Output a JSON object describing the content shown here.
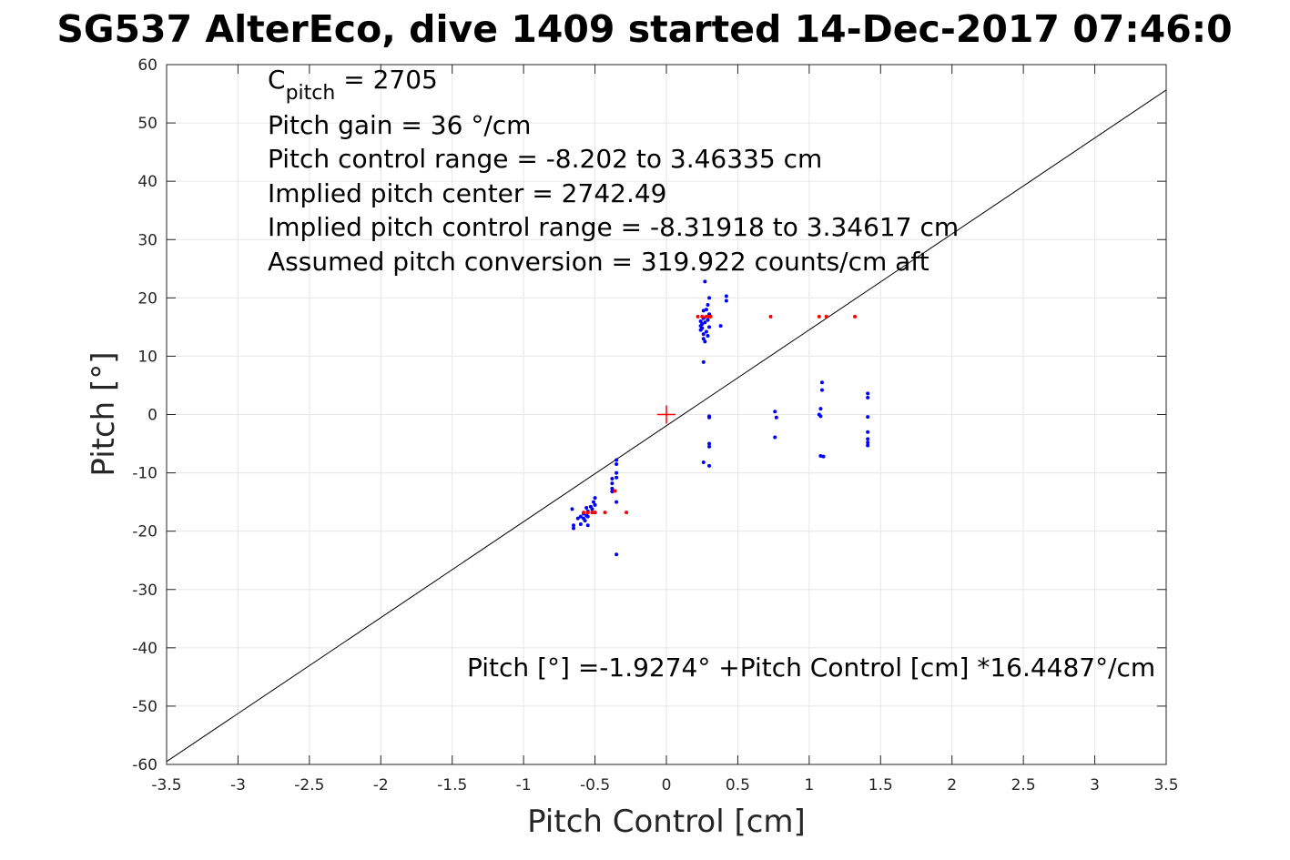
{
  "chart_data": {
    "type": "scatter",
    "title": "SG537 AlterEco, dive 1409 started 14-Dec-2017 07:46:0",
    "xlabel": "Pitch Control [cm]",
    "ylabel": "Pitch [°]",
    "xlim": [
      -3.5,
      3.5
    ],
    "ylim": [
      -60,
      60
    ],
    "xticks": [
      "-3.5",
      "-3",
      "-2.5",
      "-2",
      "-1.5",
      "-1",
      "-0.5",
      "0",
      "0.5",
      "1",
      "1.5",
      "2",
      "2.5",
      "3",
      "3.5"
    ],
    "yticks": [
      "60",
      "50",
      "40",
      "30",
      "20",
      "10",
      "0",
      "-10",
      "-20",
      "-30",
      "-40",
      "-50",
      "-60"
    ],
    "grid": true,
    "annotations": {
      "c_pitch_symbol": "C",
      "c_pitch_sub": "pitch",
      "c_pitch_value": " = 2705",
      "lines": [
        "Pitch gain = 36 °/cm",
        "Pitch control range = -8.202 to 3.46335 cm",
        "Implied pitch center = 2742.49",
        "Implied pitch control range = -8.31918 to 3.34617 cm",
        "Assumed pitch conversion = 319.922 counts/cm aft"
      ],
      "fit_equation": "Pitch [°] =-1.9274° +Pitch Control [cm] *16.4487°/cm"
    },
    "fit_line": {
      "intercept": -1.9274,
      "slope": 16.4487,
      "color": "#000000"
    },
    "center_marker": {
      "x": 0,
      "y": 0,
      "color": "#ff0000"
    },
    "series": [
      {
        "color": "#0000ff",
        "points": [
          [
            -0.65,
            -19.5
          ],
          [
            -0.65,
            -19
          ],
          [
            -0.66,
            -16.2
          ],
          [
            -0.62,
            -17.8
          ],
          [
            -0.6,
            -17.5
          ],
          [
            -0.6,
            -18.8
          ],
          [
            -0.58,
            -17
          ],
          [
            -0.58,
            -17.8
          ],
          [
            -0.57,
            -18.2
          ],
          [
            -0.56,
            -16
          ],
          [
            -0.56,
            -17.3
          ],
          [
            -0.55,
            -16.6
          ],
          [
            -0.55,
            -17.5
          ],
          [
            -0.55,
            -19
          ],
          [
            -0.53,
            -15.8
          ],
          [
            -0.52,
            -16.2
          ],
          [
            -0.51,
            -15
          ],
          [
            -0.5,
            -14.3
          ],
          [
            -0.5,
            -15.5
          ],
          [
            -0.5,
            -16.8
          ],
          [
            -0.38,
            -11
          ],
          [
            -0.38,
            -11.8
          ],
          [
            -0.38,
            -12.7
          ],
          [
            -0.38,
            -13.2
          ],
          [
            -0.35,
            -7.8
          ],
          [
            -0.35,
            -8.5
          ],
          [
            -0.35,
            -10
          ],
          [
            -0.35,
            -10.8
          ],
          [
            -0.35,
            -15
          ],
          [
            -0.35,
            -24
          ],
          [
            0.24,
            14.5
          ],
          [
            0.24,
            15.2
          ],
          [
            0.24,
            16
          ],
          [
            0.25,
            14.8
          ],
          [
            0.25,
            15.5
          ],
          [
            0.26,
            13
          ],
          [
            0.26,
            13.8
          ],
          [
            0.26,
            16.5
          ],
          [
            0.26,
            17.8
          ],
          [
            0.26,
            9
          ],
          [
            0.26,
            -8.2
          ],
          [
            0.27,
            22.8
          ],
          [
            0.27,
            15.8
          ],
          [
            0.27,
            12.5
          ],
          [
            0.28,
            14.2
          ],
          [
            0.28,
            18
          ],
          [
            0.29,
            16.2
          ],
          [
            0.29,
            13.5
          ],
          [
            0.3,
            15
          ],
          [
            0.3,
            17.2
          ],
          [
            0.3,
            20
          ],
          [
            0.3,
            -0.3
          ],
          [
            0.3,
            -0.5
          ],
          [
            0.3,
            -5
          ],
          [
            0.3,
            -5.5
          ],
          [
            0.3,
            -8.8
          ],
          [
            0.29,
            18.8
          ],
          [
            0.38,
            15.2
          ],
          [
            0.42,
            19.5
          ],
          [
            0.42,
            20.3
          ],
          [
            0.76,
            0.5
          ],
          [
            0.77,
            -0.5
          ],
          [
            0.76,
            -3.9
          ],
          [
            1.07,
            0
          ],
          [
            1.08,
            -0.3
          ],
          [
            1.08,
            1
          ],
          [
            1.09,
            4.2
          ],
          [
            1.09,
            5.5
          ],
          [
            1.08,
            -7.1
          ],
          [
            1.1,
            -7.2
          ],
          [
            1.41,
            -0.4
          ],
          [
            1.41,
            -3
          ],
          [
            1.41,
            -4.2
          ],
          [
            1.41,
            -4.8
          ],
          [
            1.41,
            -5.3
          ],
          [
            1.41,
            2.9
          ],
          [
            1.41,
            3.6
          ]
        ]
      },
      {
        "color": "#ff0000",
        "points": [
          [
            -0.58,
            -16.8
          ],
          [
            -0.55,
            -16.8
          ],
          [
            -0.52,
            -16.8
          ],
          [
            -0.5,
            -16.8
          ],
          [
            -0.43,
            -16.8
          ],
          [
            -0.36,
            -13.1
          ],
          [
            -0.28,
            -16.8
          ],
          [
            0.22,
            16.8
          ],
          [
            0.25,
            16.8
          ],
          [
            0.28,
            16.8
          ],
          [
            0.3,
            16.8
          ],
          [
            0.31,
            16.8
          ],
          [
            0.73,
            16.8
          ],
          [
            1.07,
            16.8
          ],
          [
            1.12,
            16.8
          ],
          [
            1.32,
            16.8
          ]
        ]
      }
    ]
  }
}
